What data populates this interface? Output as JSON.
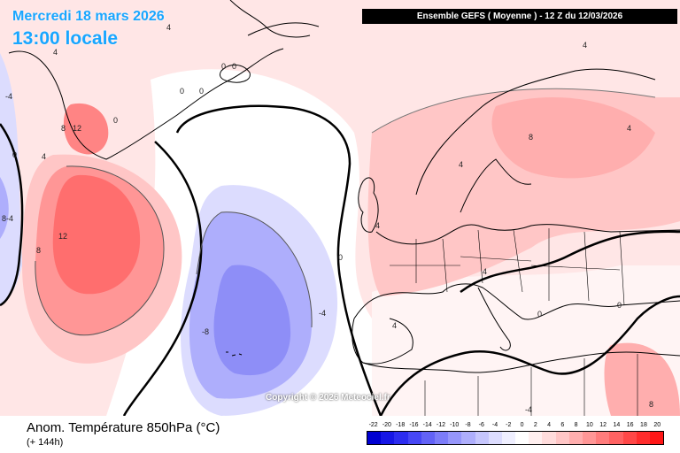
{
  "header": {
    "date_line": "Mercredi 18 mars 2026",
    "time_line": "13:00 locale",
    "run_info": "Ensemble GEFS  ( Moyenne )  -  12 Z du 12/03/2026"
  },
  "copyright": "Copyright © 2026 Meteociel.fr",
  "footer": {
    "parameter": "Anom. Température 850hPa (°C)",
    "lead_time": "(+ 144h)"
  },
  "legend": {
    "ticks": [
      "-22",
      "-20",
      "-18",
      "-16",
      "-14",
      "-12",
      "-10",
      "-8",
      "-6",
      "-4",
      "-2",
      "0",
      "2",
      "4",
      "6",
      "8",
      "10",
      "12",
      "14",
      "16",
      "18",
      "20"
    ],
    "colors": [
      "#0000d2",
      "#1616e6",
      "#2c2cf0",
      "#4747f5",
      "#6262f7",
      "#7c7cf9",
      "#9696fb",
      "#aeaefc",
      "#c6c6fd",
      "#dcdcfe",
      "#efefff",
      "#ffffff",
      "#ffefef",
      "#ffdcdc",
      "#ffc6c6",
      "#ffaeae",
      "#ff9696",
      "#ff7c7c",
      "#ff6262",
      "#ff4747",
      "#ff2c2c",
      "#ff1616"
    ]
  },
  "contour_labels": [
    {
      "id": "lbl-4-topleft-a",
      "text": "4"
    },
    {
      "id": "lbl-4-topleft-b",
      "text": "4"
    },
    {
      "id": "lbl-0-iceland-a",
      "text": "0"
    },
    {
      "id": "lbl-0-iceland-b",
      "text": "0"
    },
    {
      "id": "lbl-0-iceland-c",
      "text": "0"
    },
    {
      "id": "lbl-0-iceland-d",
      "text": "0"
    },
    {
      "id": "lbl-4-north",
      "text": "4"
    },
    {
      "id": "lbl-neg4-west",
      "text": "-4"
    },
    {
      "id": "lbl-0-west",
      "text": "0"
    },
    {
      "id": "lbl-4-greenland",
      "text": "4"
    },
    {
      "id": "lbl-8-greenland",
      "text": "8"
    },
    {
      "id": "lbl-12-greenland",
      "text": "12"
    },
    {
      "id": "lbl-0-greenland",
      "text": "0"
    },
    {
      "id": "lbl-8-4-west",
      "text": "8-4"
    },
    {
      "id": "lbl-8-atl",
      "text": "8"
    },
    {
      "id": "lbl-12-atl",
      "text": "12"
    },
    {
      "id": "lbl-neg4-atl",
      "text": "-4"
    },
    {
      "id": "lbl-neg8-atl",
      "text": "-8"
    },
    {
      "id": "lbl-0-atl",
      "text": "0"
    },
    {
      "id": "lbl-4-uk",
      "text": "4"
    },
    {
      "id": "lbl-4-scand",
      "text": "4"
    },
    {
      "id": "lbl-8-baltic",
      "text": "8"
    },
    {
      "id": "lbl-4-europe",
      "text": "4"
    },
    {
      "id": "lbl-4-spain",
      "text": "4"
    },
    {
      "id": "lbl-0-italy",
      "text": "0"
    },
    {
      "id": "lbl-0-balkans",
      "text": "0"
    },
    {
      "id": "lbl-neg4-africa",
      "text": "-4"
    },
    {
      "id": "lbl-8-egypt",
      "text": "8"
    },
    {
      "id": "lbl-4-topright",
      "text": "4"
    }
  ]
}
